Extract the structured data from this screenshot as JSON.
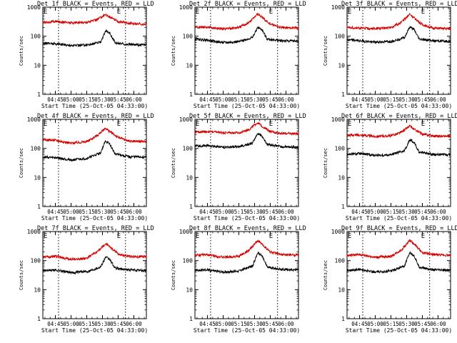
{
  "chart_data": [
    {
      "type": "line",
      "title": "Det 1f BLACK = Events, RED = LLD",
      "xlabel": "Start Time (25-Oct-05 04:33:00)",
      "ylabel": "Counts/sec",
      "xlim": [
        "04:33",
        "06:12"
      ],
      "ylim": [
        1,
        1000
      ],
      "yscale": "log",
      "x_ticks": [
        "04:45",
        "05:00",
        "05:15",
        "05:30",
        "05:45",
        "06:00"
      ],
      "y_ticks": [
        "1",
        "10",
        "100",
        "1000"
      ],
      "event_lines": [
        "04:48",
        "05:52"
      ],
      "event_markers": [
        "E",
        "E"
      ],
      "series": [
        {
          "color": "#d40000",
          "x": [
            "04:33",
            "04:45",
            "05:00",
            "05:15",
            "05:25",
            "05:33",
            "05:36",
            "05:45",
            "05:55",
            "06:12"
          ],
          "values": [
            300,
            320,
            290,
            300,
            380,
            560,
            480,
            320,
            280,
            260
          ]
        },
        {
          "color": "#000000",
          "x": [
            "04:33",
            "04:45",
            "05:00",
            "05:15",
            "05:28",
            "05:33",
            "05:37",
            "05:42",
            "05:55",
            "06:12"
          ],
          "values": [
            58,
            55,
            48,
            50,
            62,
            150,
            130,
            60,
            52,
            50
          ]
        }
      ]
    },
    {
      "type": "line",
      "title": "Det 2f BLACK = Events, RED = LLD",
      "xlabel": "Start Time (25-Oct-05 04:33:00)",
      "ylabel": "Counts/sec",
      "xlim": [
        "04:33",
        "06:12"
      ],
      "ylim": [
        1,
        1000
      ],
      "yscale": "log",
      "x_ticks": [
        "04:45",
        "05:00",
        "05:15",
        "05:30",
        "05:45",
        "06:00"
      ],
      "y_ticks": [
        "1",
        "10",
        "100",
        "1000"
      ],
      "event_lines": [
        "04:48",
        "05:52"
      ],
      "event_markers": [
        "E",
        "E"
      ],
      "series": [
        {
          "color": "#d40000",
          "x": [
            "04:33",
            "04:45",
            "05:00",
            "05:15",
            "05:25",
            "05:33",
            "05:36",
            "05:45",
            "05:55",
            "06:12"
          ],
          "values": [
            210,
            200,
            180,
            200,
            300,
            600,
            480,
            260,
            200,
            190
          ]
        },
        {
          "color": "#000000",
          "x": [
            "04:33",
            "04:45",
            "05:00",
            "05:15",
            "05:28",
            "05:33",
            "05:37",
            "05:42",
            "05:55",
            "06:12"
          ],
          "values": [
            80,
            72,
            60,
            65,
            90,
            200,
            170,
            80,
            70,
            68
          ]
        }
      ]
    },
    {
      "type": "line",
      "title": "Det 3f BLACK = Events, RED = LLD",
      "xlabel": "Start Time (25-Oct-05 04:33:00)",
      "ylabel": "Counts/sec",
      "xlim": [
        "04:33",
        "06:12"
      ],
      "ylim": [
        1,
        1000
      ],
      "yscale": "log",
      "x_ticks": [
        "04:45",
        "05:00",
        "05:15",
        "05:30",
        "05:45",
        "06:00"
      ],
      "y_ticks": [
        "1",
        "10",
        "100",
        "1000"
      ],
      "event_lines": [
        "04:48",
        "05:52"
      ],
      "event_markers": [
        "E",
        "E"
      ],
      "series": [
        {
          "color": "#d40000",
          "x": [
            "04:33",
            "04:45",
            "05:00",
            "05:15",
            "05:25",
            "05:33",
            "05:36",
            "05:45",
            "05:55",
            "06:12"
          ],
          "values": [
            200,
            190,
            180,
            200,
            300,
            580,
            460,
            250,
            190,
            180
          ]
        },
        {
          "color": "#000000",
          "x": [
            "04:33",
            "04:45",
            "05:00",
            "05:15",
            "05:28",
            "05:33",
            "05:37",
            "05:42",
            "05:55",
            "06:12"
          ],
          "values": [
            75,
            70,
            62,
            66,
            90,
            210,
            170,
            80,
            70,
            66
          ]
        }
      ]
    },
    {
      "type": "line",
      "title": "Det 4f BLACK = Events, RED = LLD",
      "xlabel": "Start Time (25-Oct-05 04:33:00)",
      "ylabel": "Counts/sec",
      "xlim": [
        "04:33",
        "06:12"
      ],
      "ylim": [
        1,
        1000
      ],
      "yscale": "log",
      "x_ticks": [
        "04:45",
        "05:00",
        "05:15",
        "05:30",
        "05:45",
        "06:00"
      ],
      "y_ticks": [
        "1",
        "10",
        "100",
        "1000"
      ],
      "event_lines": [
        "04:48",
        "05:52"
      ],
      "event_markers": [
        "E",
        "E"
      ],
      "series": [
        {
          "color": "#d40000",
          "x": [
            "04:33",
            "04:45",
            "05:00",
            "05:15",
            "05:25",
            "05:33",
            "05:36",
            "05:45",
            "05:55",
            "06:12"
          ],
          "values": [
            200,
            190,
            150,
            170,
            280,
            500,
            400,
            240,
            180,
            170
          ]
        },
        {
          "color": "#000000",
          "x": [
            "04:33",
            "04:45",
            "05:00",
            "05:15",
            "05:28",
            "05:33",
            "05:37",
            "05:42",
            "05:55",
            "06:12"
          ],
          "values": [
            50,
            48,
            40,
            45,
            70,
            180,
            140,
            65,
            52,
            50
          ]
        }
      ]
    },
    {
      "type": "line",
      "title": "Det 5f BLACK = Events, RED = LLD",
      "xlabel": "Start Time (25-Oct-05 04:33:00)",
      "ylabel": "Counts/sec",
      "xlim": [
        "04:33",
        "06:12"
      ],
      "ylim": [
        1,
        1000
      ],
      "yscale": "log",
      "x_ticks": [
        "04:45",
        "05:00",
        "05:15",
        "05:30",
        "05:45",
        "06:00"
      ],
      "y_ticks": [
        "1",
        "10",
        "100",
        "1000"
      ],
      "event_lines": [
        "04:48",
        "05:52"
      ],
      "event_markers": [
        "E",
        "E"
      ],
      "series": [
        {
          "color": "#d40000",
          "x": [
            "04:33",
            "04:45",
            "05:00",
            "05:15",
            "05:25",
            "05:33",
            "05:36",
            "05:45",
            "05:55",
            "06:12"
          ],
          "values": [
            360,
            380,
            350,
            340,
            450,
            780,
            620,
            380,
            330,
            320
          ]
        },
        {
          "color": "#000000",
          "x": [
            "04:33",
            "04:45",
            "05:00",
            "05:15",
            "05:28",
            "05:33",
            "05:37",
            "05:42",
            "05:55",
            "06:12"
          ],
          "values": [
            120,
            125,
            110,
            115,
            150,
            330,
            270,
            140,
            115,
            110
          ]
        }
      ]
    },
    {
      "type": "line",
      "title": "Det 6f BLACK = Events, RED = LLD",
      "xlabel": "Start Time (25-Oct-05 04:33:00)",
      "ylabel": "Counts/sec",
      "xlim": [
        "04:33",
        "06:12"
      ],
      "ylim": [
        1,
        1000
      ],
      "yscale": "log",
      "x_ticks": [
        "04:45",
        "05:00",
        "05:15",
        "05:30",
        "05:45",
        "06:00"
      ],
      "y_ticks": [
        "1",
        "10",
        "100",
        "1000"
      ],
      "event_lines": [
        "04:48",
        "05:52"
      ],
      "event_markers": [
        "E",
        "E"
      ],
      "series": [
        {
          "color": "#d40000",
          "x": [
            "04:33",
            "04:45",
            "05:00",
            "05:15",
            "05:25",
            "05:33",
            "05:36",
            "05:45",
            "05:55",
            "06:12"
          ],
          "values": [
            280,
            290,
            260,
            270,
            360,
            590,
            480,
            310,
            270,
            260
          ]
        },
        {
          "color": "#000000",
          "x": [
            "04:33",
            "04:45",
            "05:00",
            "05:15",
            "05:28",
            "05:33",
            "05:37",
            "05:42",
            "05:55",
            "06:12"
          ],
          "values": [
            62,
            66,
            58,
            60,
            85,
            200,
            160,
            75,
            62,
            60
          ]
        }
      ]
    },
    {
      "type": "line",
      "title": "Det 7f BLACK = Events, RED = LLD",
      "xlabel": "Start Time (25-Oct-05 04:33:00)",
      "ylabel": "Counts/sec",
      "xlim": [
        "04:33",
        "06:12"
      ],
      "ylim": [
        1,
        1000
      ],
      "yscale": "log",
      "x_ticks": [
        "04:45",
        "05:00",
        "05:15",
        "05:30",
        "05:45",
        "06:00"
      ],
      "y_ticks": [
        "1",
        "10",
        "100",
        "1000"
      ],
      "event_lines": [
        "04:48",
        "05:52"
      ],
      "event_markers": [
        "E",
        "E"
      ],
      "series": [
        {
          "color": "#d40000",
          "x": [
            "04:33",
            "04:45",
            "05:00",
            "05:15",
            "05:25",
            "05:33",
            "05:36",
            "05:45",
            "05:55",
            "06:12"
          ],
          "values": [
            130,
            140,
            110,
            120,
            200,
            380,
            320,
            170,
            140,
            135
          ]
        },
        {
          "color": "#000000",
          "x": [
            "04:33",
            "04:45",
            "05:00",
            "05:15",
            "05:28",
            "05:33",
            "05:37",
            "05:42",
            "05:55",
            "06:12"
          ],
          "values": [
            45,
            48,
            38,
            42,
            60,
            130,
            110,
            55,
            48,
            45
          ]
        }
      ]
    },
    {
      "type": "line",
      "title": "Det 8f BLACK = Events, RED = LLD",
      "xlabel": "Start Time (25-Oct-05 04:33:00)",
      "ylabel": "Counts/sec",
      "xlim": [
        "04:33",
        "06:12"
      ],
      "ylim": [
        1,
        1000
      ],
      "yscale": "log",
      "x_ticks": [
        "04:45",
        "05:00",
        "05:15",
        "05:30",
        "05:45",
        "06:00"
      ],
      "y_ticks": [
        "1",
        "10",
        "100",
        "1000"
      ],
      "event_lines": [
        "04:48",
        "05:52"
      ],
      "event_markers": [
        "E",
        "E"
      ],
      "series": [
        {
          "color": "#d40000",
          "x": [
            "04:33",
            "04:45",
            "05:00",
            "05:15",
            "05:25",
            "05:33",
            "05:36",
            "05:45",
            "05:55",
            "06:12"
          ],
          "values": [
            150,
            160,
            130,
            140,
            230,
            480,
            400,
            200,
            160,
            155
          ]
        },
        {
          "color": "#000000",
          "x": [
            "04:33",
            "04:45",
            "05:00",
            "05:15",
            "05:28",
            "05:33",
            "05:37",
            "05:42",
            "05:55",
            "06:12"
          ],
          "values": [
            45,
            48,
            40,
            44,
            65,
            180,
            150,
            60,
            50,
            48
          ]
        }
      ]
    },
    {
      "type": "line",
      "title": "Det 9f BLACK = Events, RED = LLD",
      "xlabel": "Start Time (25-Oct-05 04:33:00)",
      "ylabel": "Counts/sec",
      "xlim": [
        "04:33",
        "06:12"
      ],
      "ylim": [
        1,
        1000
      ],
      "yscale": "log",
      "x_ticks": [
        "04:45",
        "05:00",
        "05:15",
        "05:30",
        "05:45",
        "06:00"
      ],
      "y_ticks": [
        "1",
        "10",
        "100",
        "1000"
      ],
      "event_lines": [
        "04:48",
        "05:52"
      ],
      "event_markers": [
        "E",
        "E"
      ],
      "series": [
        {
          "color": "#d40000",
          "x": [
            "04:33",
            "04:45",
            "05:00",
            "05:15",
            "05:25",
            "05:33",
            "05:36",
            "05:45",
            "05:55",
            "06:12"
          ],
          "values": [
            150,
            160,
            130,
            140,
            230,
            500,
            400,
            190,
            160,
            150
          ]
        },
        {
          "color": "#000000",
          "x": [
            "04:33",
            "04:45",
            "05:00",
            "05:15",
            "05:28",
            "05:33",
            "05:37",
            "05:42",
            "05:55",
            "06:12"
          ],
          "values": [
            45,
            50,
            40,
            44,
            65,
            190,
            150,
            60,
            48,
            46
          ]
        }
      ]
    }
  ]
}
